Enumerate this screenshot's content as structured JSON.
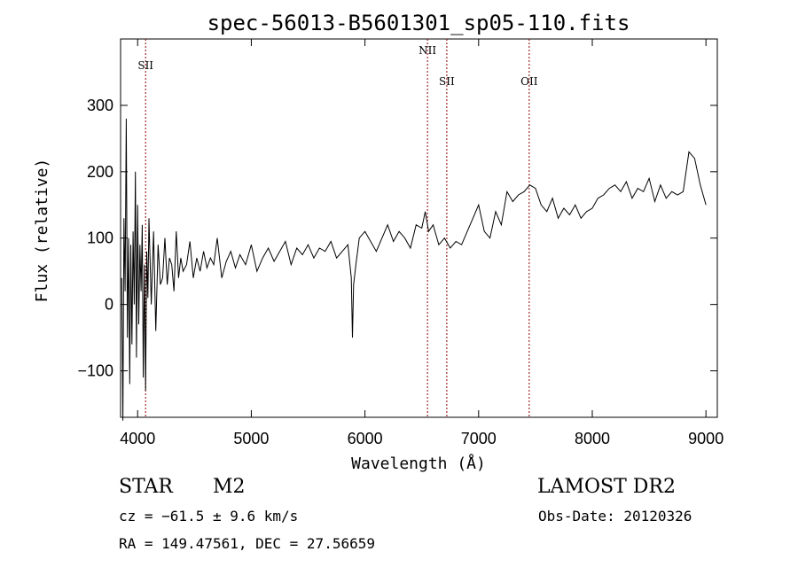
{
  "chart_data": {
    "type": "line",
    "title": "spec-56013-B5601301_sp05-110.fits",
    "xlabel": "Wavelength (Å)",
    "ylabel": "Flux (relative)",
    "xlim": [
      3850,
      9100
    ],
    "ylim": [
      -170,
      400
    ],
    "xticks": [
      4000,
      5000,
      6000,
      7000,
      8000,
      9000
    ],
    "yticks": [
      -100,
      0,
      100,
      200,
      300
    ],
    "grid": false,
    "line_color": "#000000",
    "marker_color": "#8b0000",
    "lines": [
      {
        "label": "SII",
        "x": 4070,
        "label_level": "low"
      },
      {
        "label": "NII",
        "x": 6550,
        "label_level": "high"
      },
      {
        "label": "SII",
        "x": 6720,
        "label_level": "mid"
      },
      {
        "label": "OII",
        "x": 7445,
        "label_level": "mid"
      }
    ],
    "series": [
      {
        "x": [
          3860,
          3870,
          3880,
          3890,
          3900,
          3910,
          3920,
          3930,
          3940,
          3950,
          3960,
          3970,
          3980,
          3990,
          4000,
          4010,
          4020,
          4030,
          4040,
          4050,
          4060,
          4070,
          4080,
          4090,
          4100,
          4120,
          4140,
          4160,
          4180,
          4200,
          4220,
          4240,
          4260,
          4280,
          4300,
          4320,
          4340,
          4360,
          4380,
          4400,
          4430,
          4460,
          4490,
          4520,
          4550,
          4580,
          4610,
          4640,
          4670,
          4700,
          4740,
          4780,
          4820,
          4860,
          4900,
          4950,
          5000,
          5050,
          5100,
          5150,
          5200,
          5250,
          5300,
          5350,
          5400,
          5450,
          5500,
          5550,
          5600,
          5650,
          5700,
          5750,
          5800,
          5850,
          5880,
          5890,
          5900,
          5920,
          5950,
          6000,
          6050,
          6100,
          6150,
          6200,
          6250,
          6300,
          6350,
          6400,
          6450,
          6500,
          6530,
          6560,
          6600,
          6650,
          6700,
          6750,
          6800,
          6850,
          6900,
          6950,
          7000,
          7050,
          7100,
          7150,
          7200,
          7250,
          7300,
          7350,
          7400,
          7450,
          7500,
          7550,
          7600,
          7650,
          7700,
          7750,
          7800,
          7850,
          7900,
          7950,
          8000,
          8050,
          8100,
          8150,
          8200,
          8250,
          8300,
          8350,
          8400,
          8450,
          8500,
          8550,
          8600,
          8650,
          8700,
          8750,
          8800,
          8850,
          8900,
          8950,
          9000
        ],
        "y": [
          40,
          -175,
          130,
          20,
          280,
          -50,
          100,
          -120,
          90,
          -60,
          110,
          0,
          200,
          -80,
          150,
          -30,
          90,
          20,
          120,
          -110,
          60,
          -130,
          80,
          10,
          130,
          0,
          110,
          -40,
          90,
          30,
          40,
          100,
          30,
          70,
          60,
          20,
          110,
          40,
          70,
          50,
          60,
          95,
          40,
          70,
          50,
          80,
          55,
          70,
          60,
          100,
          40,
          65,
          80,
          55,
          75,
          60,
          90,
          50,
          70,
          85,
          65,
          80,
          95,
          60,
          85,
          75,
          90,
          70,
          85,
          80,
          95,
          70,
          80,
          90,
          40,
          -50,
          30,
          60,
          100,
          110,
          95,
          80,
          100,
          120,
          95,
          110,
          100,
          85,
          120,
          115,
          140,
          110,
          120,
          90,
          100,
          85,
          95,
          90,
          110,
          130,
          150,
          110,
          100,
          140,
          120,
          170,
          155,
          165,
          170,
          180,
          175,
          150,
          140,
          160,
          130,
          145,
          135,
          150,
          130,
          140,
          145,
          160,
          165,
          175,
          180,
          170,
          185,
          160,
          175,
          170,
          190,
          155,
          180,
          160,
          170,
          165,
          170,
          230,
          220,
          180,
          150
        ]
      }
    ]
  },
  "footer": {
    "object_class": "STAR",
    "subclass": "M2",
    "survey": "LAMOST DR2",
    "cz": "cz = −61.5 ± 9.6 km/s",
    "obs_date": "Obs-Date: 20120326",
    "radec": "RA = 149.47561, DEC =  27.56659"
  }
}
